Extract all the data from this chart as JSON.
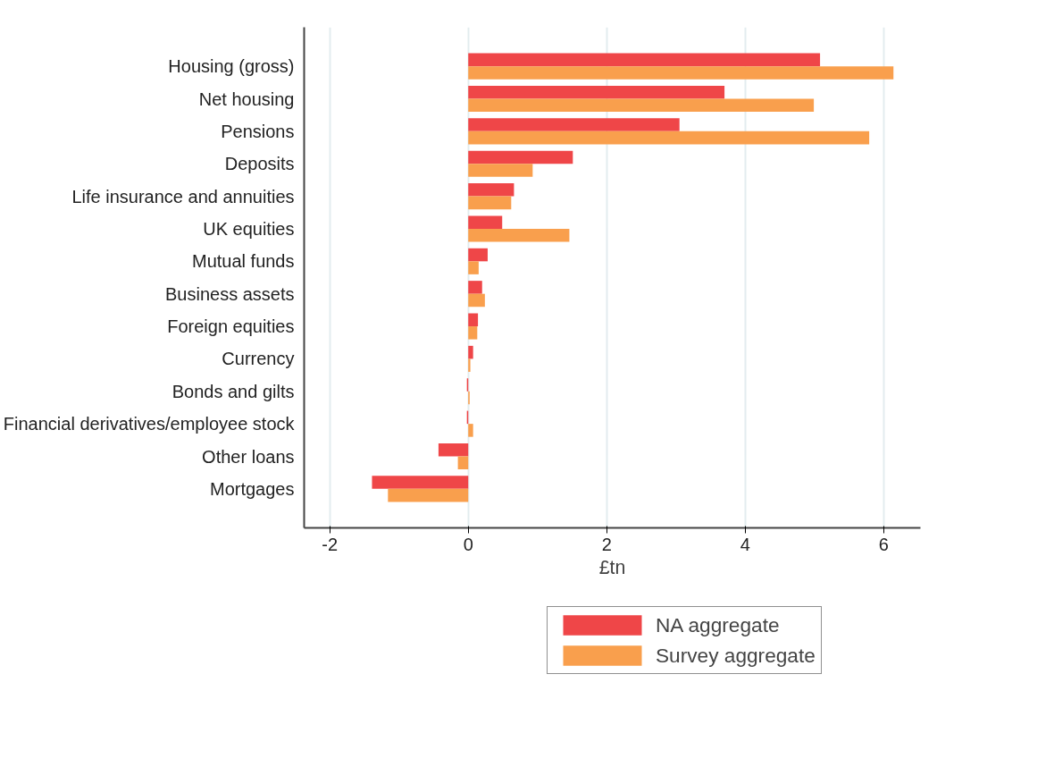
{
  "chart_data": {
    "type": "bar",
    "orientation": "horizontal",
    "xlabel": "£tn",
    "categories": [
      "Housing (gross)",
      "Net housing",
      "Pensions",
      "Deposits",
      "Life insurance and annuities",
      "UK equities",
      "Mutual funds",
      "Business assets",
      "Foreign equities",
      "Currency",
      "Bonds and gilts",
      "Financial derivatives/employee stock",
      "Other loans",
      "Mortgages"
    ],
    "series": [
      {
        "name": "NA aggregate",
        "color": "#ef4648",
        "values": [
          5.08,
          3.7,
          3.05,
          1.51,
          0.66,
          0.49,
          0.28,
          0.2,
          0.14,
          0.07,
          -0.02,
          -0.02,
          -0.43,
          -1.39
        ]
      },
      {
        "name": "Survey aggregate",
        "color": "#f99f4d",
        "values": [
          6.14,
          4.99,
          5.79,
          0.93,
          0.62,
          1.46,
          0.15,
          0.24,
          0.13,
          0.03,
          0.02,
          0.07,
          -0.15,
          -1.16
        ]
      }
    ],
    "xlim": [
      -2.37,
      6.53
    ],
    "xticks": [
      -2,
      0,
      2,
      4,
      6
    ],
    "grid": "x",
    "legend": "bottom"
  }
}
